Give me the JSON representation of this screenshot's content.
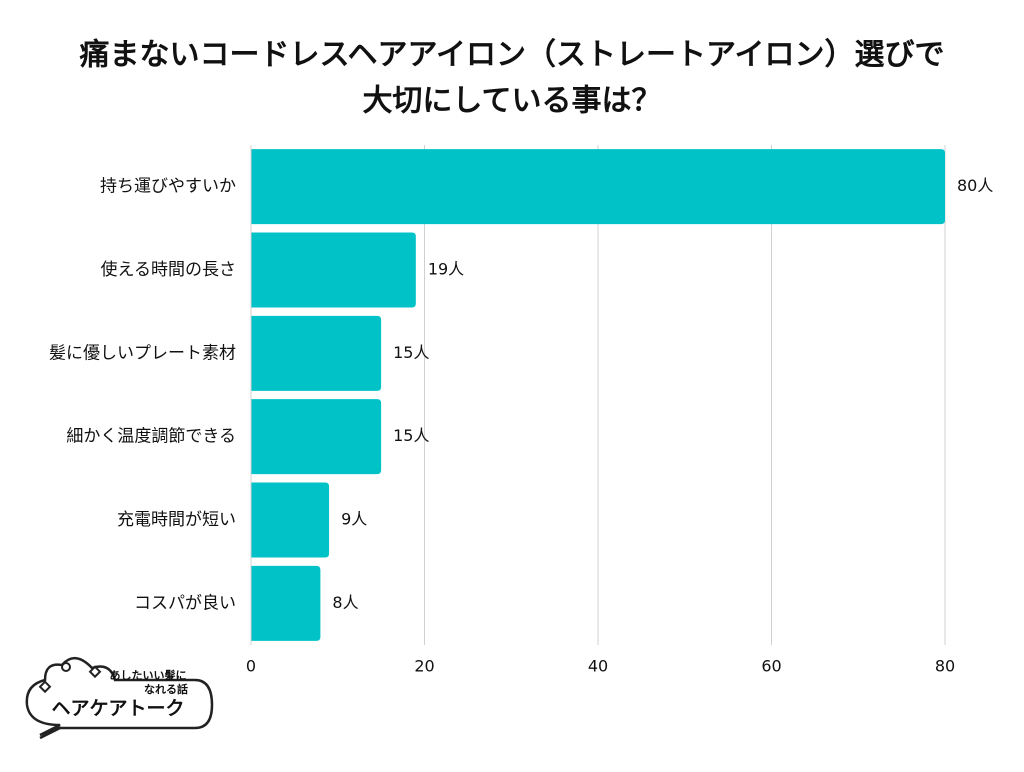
{
  "chart_data": {
    "type": "bar",
    "orientation": "horizontal",
    "title": [
      "痛まないコードレスヘアアイロン（ストレートアイロン）選びで",
      "大切にしている事は？"
    ],
    "categories": [
      "持ち運びやすいか",
      "使える時間の長さ",
      "髪に優しいプレート素材",
      "細かく温度調節できる",
      "充電時間が短い",
      "コスパが良い"
    ],
    "values": [
      80,
      19,
      15,
      15,
      9,
      8
    ],
    "value_labels": [
      "80人",
      "19人",
      "15人",
      "15人",
      "9人",
      "8人"
    ],
    "color": "#00c2c7",
    "xlim": [
      0,
      80
    ],
    "xticks": [
      0,
      20,
      40,
      60,
      80
    ],
    "grid": true
  },
  "logo": {
    "tagline": [
      "あしたいい髪に",
      "なれる話"
    ],
    "name": "ヘアケアトーク"
  }
}
